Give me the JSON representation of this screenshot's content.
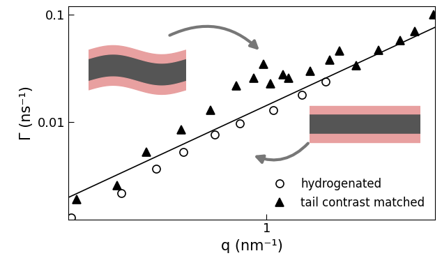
{
  "chart_data": {
    "type": "scatter",
    "x_label": "q (nm⁻¹)",
    "y_label": "Γ (ns⁻¹)",
    "log": true,
    "grid": false,
    "legend": "lower right",
    "xlim": [
      0.23,
      3.5
    ],
    "ylim": [
      0.00125,
      0.12
    ],
    "xticks": [
      1
    ],
    "yticks": [
      0.01,
      0.1
    ],
    "series": [
      {
        "name": "hydrogenated",
        "type": "scatter",
        "marker": "open_circle",
        "color": "#000000",
        "x": [
          0.235,
          0.34,
          0.44,
          0.54,
          0.68,
          0.82,
          1.05,
          1.3,
          1.55
        ],
        "values": [
          0.0013,
          0.0022,
          0.0037,
          0.0053,
          0.0077,
          0.0098,
          0.013,
          0.018,
          0.024
        ]
      },
      {
        "name": "tail contrast matched",
        "type": "scatter",
        "marker": "triangle",
        "color": "#000000",
        "x": [
          0.245,
          0.33,
          0.41,
          0.53,
          0.66,
          0.8,
          0.91,
          0.98,
          1.03,
          1.13,
          1.18,
          1.38,
          1.6,
          1.72,
          1.95,
          2.3,
          2.7,
          3.0,
          3.45
        ],
        "values": [
          0.0019,
          0.0026,
          0.0053,
          0.0085,
          0.013,
          0.022,
          0.026,
          0.035,
          0.023,
          0.028,
          0.026,
          0.03,
          0.038,
          0.046,
          0.034,
          0.047,
          0.058,
          0.07,
          0.1
        ]
      },
      {
        "type": "line",
        "line_style": "solid",
        "color": "#000000",
        "x": [
          0.23,
          3.5
        ],
        "values": [
          0.002,
          0.077
        ]
      }
    ]
  }
}
